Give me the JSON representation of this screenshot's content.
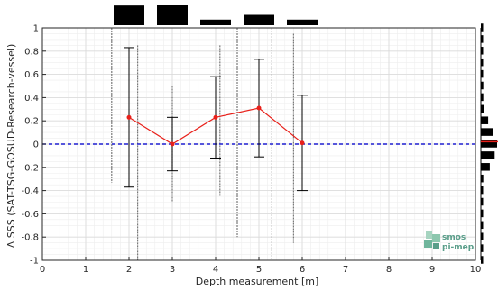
{
  "chart_data": {
    "type": "line",
    "xlabel": "Depth measurement [m]",
    "ylabel": "Δ SSS (SAT-TSG-GOSUD-Research-vessel)",
    "xlim": [
      0,
      10
    ],
    "ylim": [
      -1,
      1
    ],
    "x_ticks": [
      0,
      1,
      2,
      3,
      4,
      5,
      6,
      7,
      8,
      9,
      10
    ],
    "y_ticks": [
      -1,
      -0.8,
      -0.6,
      -0.4,
      -0.2,
      0,
      0.2,
      0.4,
      0.6,
      0.8,
      1
    ],
    "grid": true,
    "reference_line": {
      "y": 0,
      "style": "dashed",
      "color": "#1f1fd0"
    },
    "series": [
      {
        "color": "#e8201a",
        "x": [
          2,
          3,
          4,
          5,
          6
        ],
        "y": [
          0.23,
          0.0,
          0.23,
          0.31,
          0.01
        ],
        "error_low": [
          -0.37,
          -0.23,
          -0.12,
          -0.11,
          -0.4
        ],
        "error_high": [
          0.83,
          0.23,
          0.58,
          0.73,
          0.42
        ]
      }
    ],
    "scatter_columns": [
      {
        "x": 1.6,
        "ymin": -0.33,
        "ymax": 1.0
      },
      {
        "x": 2.2,
        "ymin": -1.0,
        "ymax": 0.85
      },
      {
        "x": 3.0,
        "ymin": -0.5,
        "ymax": 0.5
      },
      {
        "x": 4.1,
        "ymin": -0.45,
        "ymax": 0.85
      },
      {
        "x": 4.5,
        "ymin": -0.8,
        "ymax": 1.0
      },
      {
        "x": 5.3,
        "ymin": -1.0,
        "ymax": 1.0
      },
      {
        "x": 5.8,
        "ymin": -0.85,
        "ymax": 0.95
      }
    ],
    "top_histogram": [
      {
        "x": 2,
        "count": 0.95
      },
      {
        "x": 3,
        "count": 1.0
      },
      {
        "x": 4,
        "count": 0.27
      },
      {
        "x": 5,
        "count": 0.5
      },
      {
        "x": 6,
        "count": 0.27
      }
    ],
    "right_histogram": [
      {
        "y": 1.0,
        "count": 0.12
      },
      {
        "y": 0.9,
        "count": 0.12
      },
      {
        "y": 0.8,
        "count": 0.12
      },
      {
        "y": 0.7,
        "count": 0.12
      },
      {
        "y": 0.6,
        "count": 0.12
      },
      {
        "y": 0.5,
        "count": 0.15
      },
      {
        "y": 0.4,
        "count": 0.15
      },
      {
        "y": 0.3,
        "count": 0.22
      },
      {
        "y": 0.2,
        "count": 0.45
      },
      {
        "y": 0.1,
        "count": 0.75
      },
      {
        "y": 0.0,
        "count": 1.0
      },
      {
        "y": -0.1,
        "count": 0.85
      },
      {
        "y": -0.2,
        "count": 0.55
      },
      {
        "y": -0.3,
        "count": 0.15
      },
      {
        "y": -0.4,
        "count": 0.12
      },
      {
        "y": -0.5,
        "count": 0.12
      },
      {
        "y": -0.6,
        "count": 0.12
      },
      {
        "y": -0.7,
        "count": 0.12
      },
      {
        "y": -0.8,
        "count": 0.12
      },
      {
        "y": -0.9,
        "count": 0.12
      },
      {
        "y": -1.0,
        "count": 0.12
      }
    ],
    "right_histogram_mean": 0.02
  },
  "logo": {
    "line1": "smos",
    "line2": "pi-mep"
  },
  "colors": {
    "grid": "#d9d9d9",
    "axis": "#262626",
    "scatter": "#7a7a7a",
    "hist": "#000000"
  }
}
